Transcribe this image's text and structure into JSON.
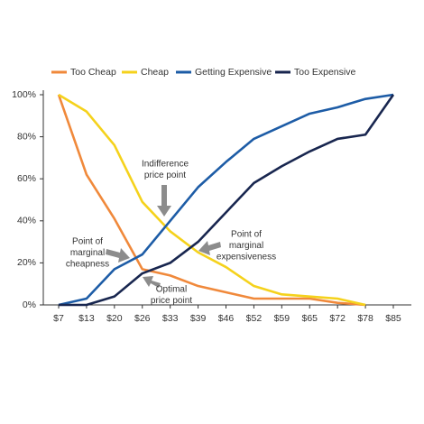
{
  "chart_data": {
    "type": "line",
    "categories": [
      "$7",
      "$13",
      "$20",
      "$26",
      "$33",
      "$39",
      "$46",
      "$52",
      "$59",
      "$65",
      "$72",
      "$78",
      "$85"
    ],
    "series": [
      {
        "name": "Too Cheap",
        "color": "#f0893b",
        "values": [
          100,
          62,
          41,
          17,
          14,
          9,
          6,
          3,
          3,
          3,
          1,
          0,
          null
        ]
      },
      {
        "name": "Cheap",
        "color": "#f5d21c",
        "values": [
          100,
          92,
          76,
          49,
          35,
          25,
          18,
          9,
          5,
          4,
          3,
          0,
          null
        ]
      },
      {
        "name": "Getting Expensive",
        "color": "#1d5ca6",
        "values": [
          0,
          3,
          17,
          24,
          40,
          56,
          68,
          79,
          85,
          91,
          94,
          98,
          100
        ]
      },
      {
        "name": "Too Expensive",
        "color": "#18264f",
        "values": [
          0,
          0,
          4,
          15,
          20,
          30,
          44,
          58,
          66,
          73,
          79,
          81,
          100
        ]
      }
    ],
    "ylim": [
      0,
      100
    ],
    "yticks": [
      {
        "value": 0,
        "label": "0%"
      },
      {
        "value": 20,
        "label": "20%"
      },
      {
        "value": 40,
        "label": "40%"
      },
      {
        "value": 60,
        "label": "60%"
      },
      {
        "value": 80,
        "label": "80%"
      },
      {
        "value": 100,
        "label": "100%"
      }
    ],
    "annotations": [
      {
        "lines": [
          "Indifference",
          "price point"
        ]
      },
      {
        "lines": [
          "Point of",
          "marginal",
          "cheapness"
        ]
      },
      {
        "lines": [
          "Optimal",
          "price point"
        ]
      },
      {
        "lines": [
          "Point of",
          "marginal",
          "expensiveness"
        ]
      }
    ]
  }
}
